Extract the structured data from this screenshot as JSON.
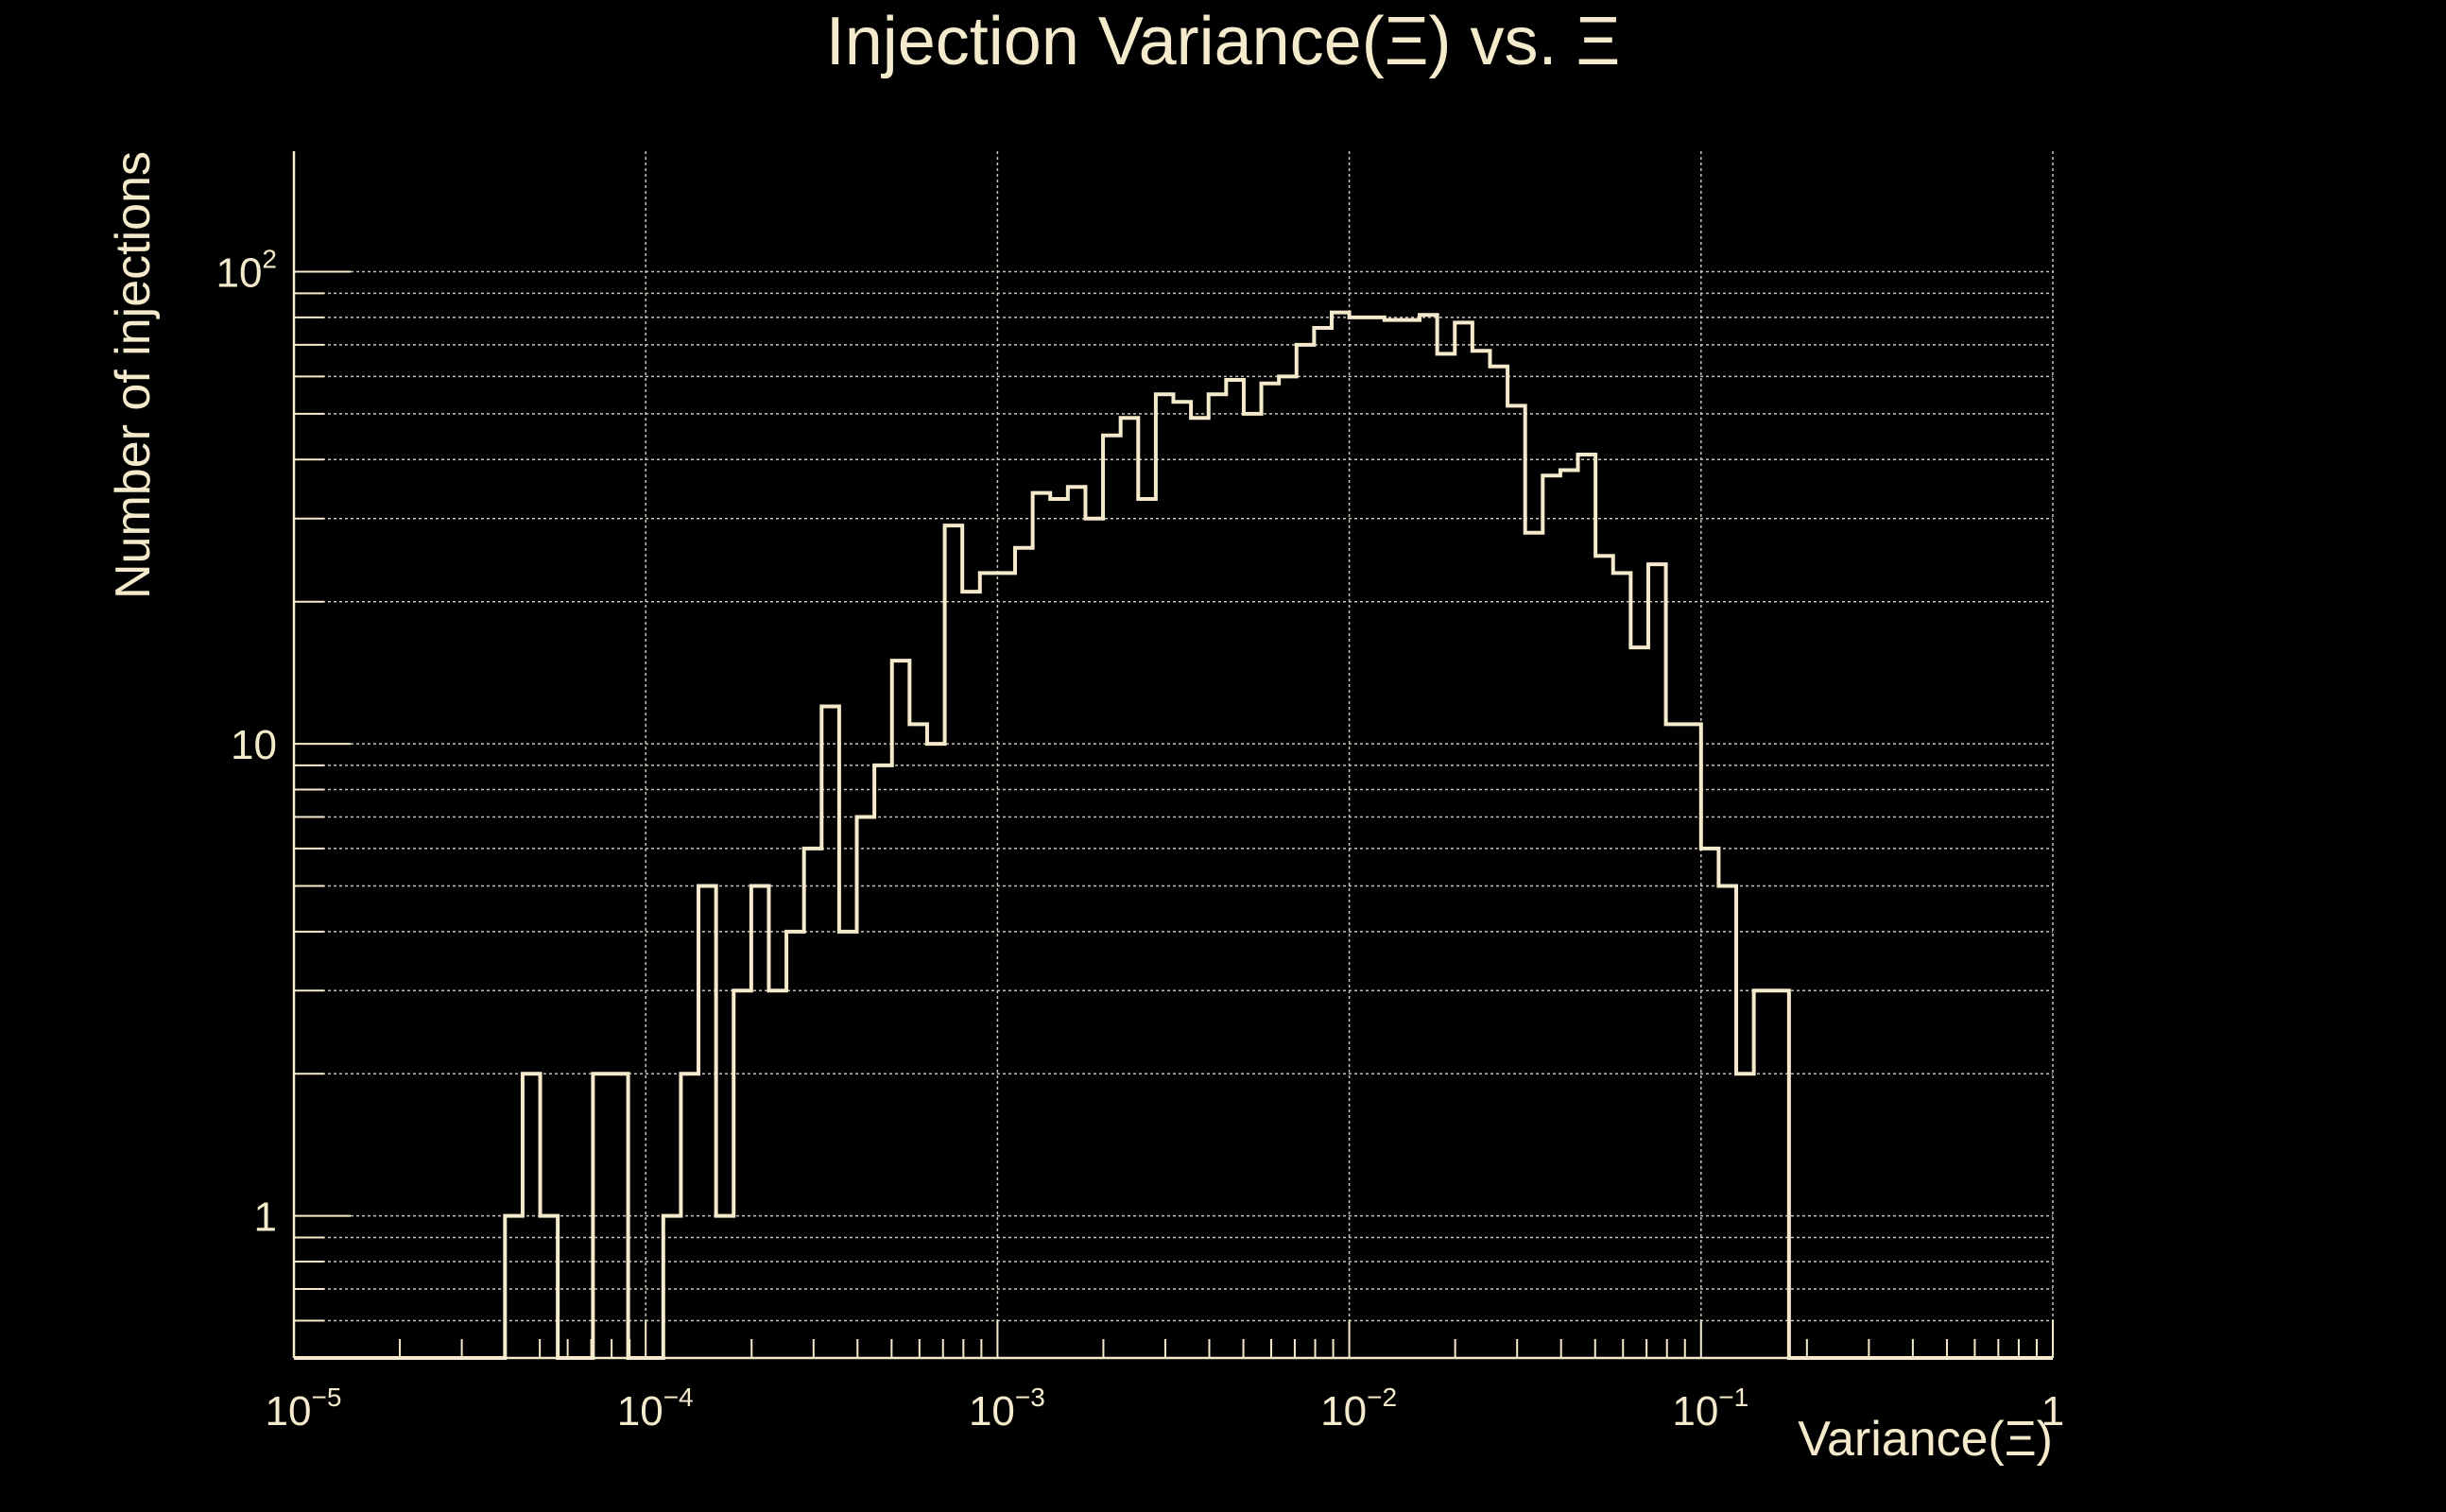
{
  "theme": {
    "background": "#000000",
    "foreground": "#f5eacb",
    "grid": "#c9c4b6"
  },
  "chart_data": {
    "type": "bar",
    "subtype": "step-histogram",
    "title": "Injection Variance(Ξ) vs. Ξ",
    "xlabel": "Variance(Ξ)",
    "ylabel": "Number of injections",
    "xscale": "log",
    "yscale": "log",
    "xlim": [
      1e-05,
      1
    ],
    "ylim": [
      0.5,
      180
    ],
    "grid": true,
    "x_tick_labels": [
      {
        "value": 1e-05,
        "base": "10",
        "exp": "−5"
      },
      {
        "value": 0.0001,
        "base": "10",
        "exp": "−4"
      },
      {
        "value": 0.001,
        "base": "10",
        "exp": "−3"
      },
      {
        "value": 0.01,
        "base": "10",
        "exp": "−2"
      },
      {
        "value": 0.1,
        "base": "10",
        "exp": "−1"
      },
      {
        "value": 1,
        "base": "1",
        "exp": ""
      }
    ],
    "y_tick_labels": [
      {
        "value": 1,
        "base": "1",
        "exp": ""
      },
      {
        "value": 10,
        "base": "10",
        "exp": ""
      },
      {
        "value": 100,
        "base": "10",
        "exp": "2"
      }
    ],
    "bins_per_decade": 20,
    "bin_start": 1e-05,
    "values": [
      0,
      0,
      0,
      0,
      0,
      0,
      0,
      0,
      0,
      0,
      0,
      0,
      1,
      2,
      1,
      0,
      0,
      2,
      2,
      0,
      0,
      1,
      2,
      5,
      1,
      3,
      5,
      3,
      4,
      6,
      12,
      4,
      7,
      9,
      15,
      11,
      10,
      29,
      21,
      23,
      23,
      26,
      34,
      33,
      35,
      30,
      45,
      49,
      33,
      55,
      53,
      49,
      55,
      59,
      50,
      58,
      60,
      70,
      76,
      82,
      80,
      80,
      79,
      79,
      81,
      67,
      78,
      68,
      63,
      52,
      28,
      37,
      38,
      41,
      25,
      23,
      16,
      24,
      11,
      11,
      6,
      5,
      2,
      3,
      3,
      0,
      0,
      0,
      0,
      0,
      0,
      0,
      0,
      0,
      0,
      0,
      0,
      0,
      0,
      0
    ]
  }
}
